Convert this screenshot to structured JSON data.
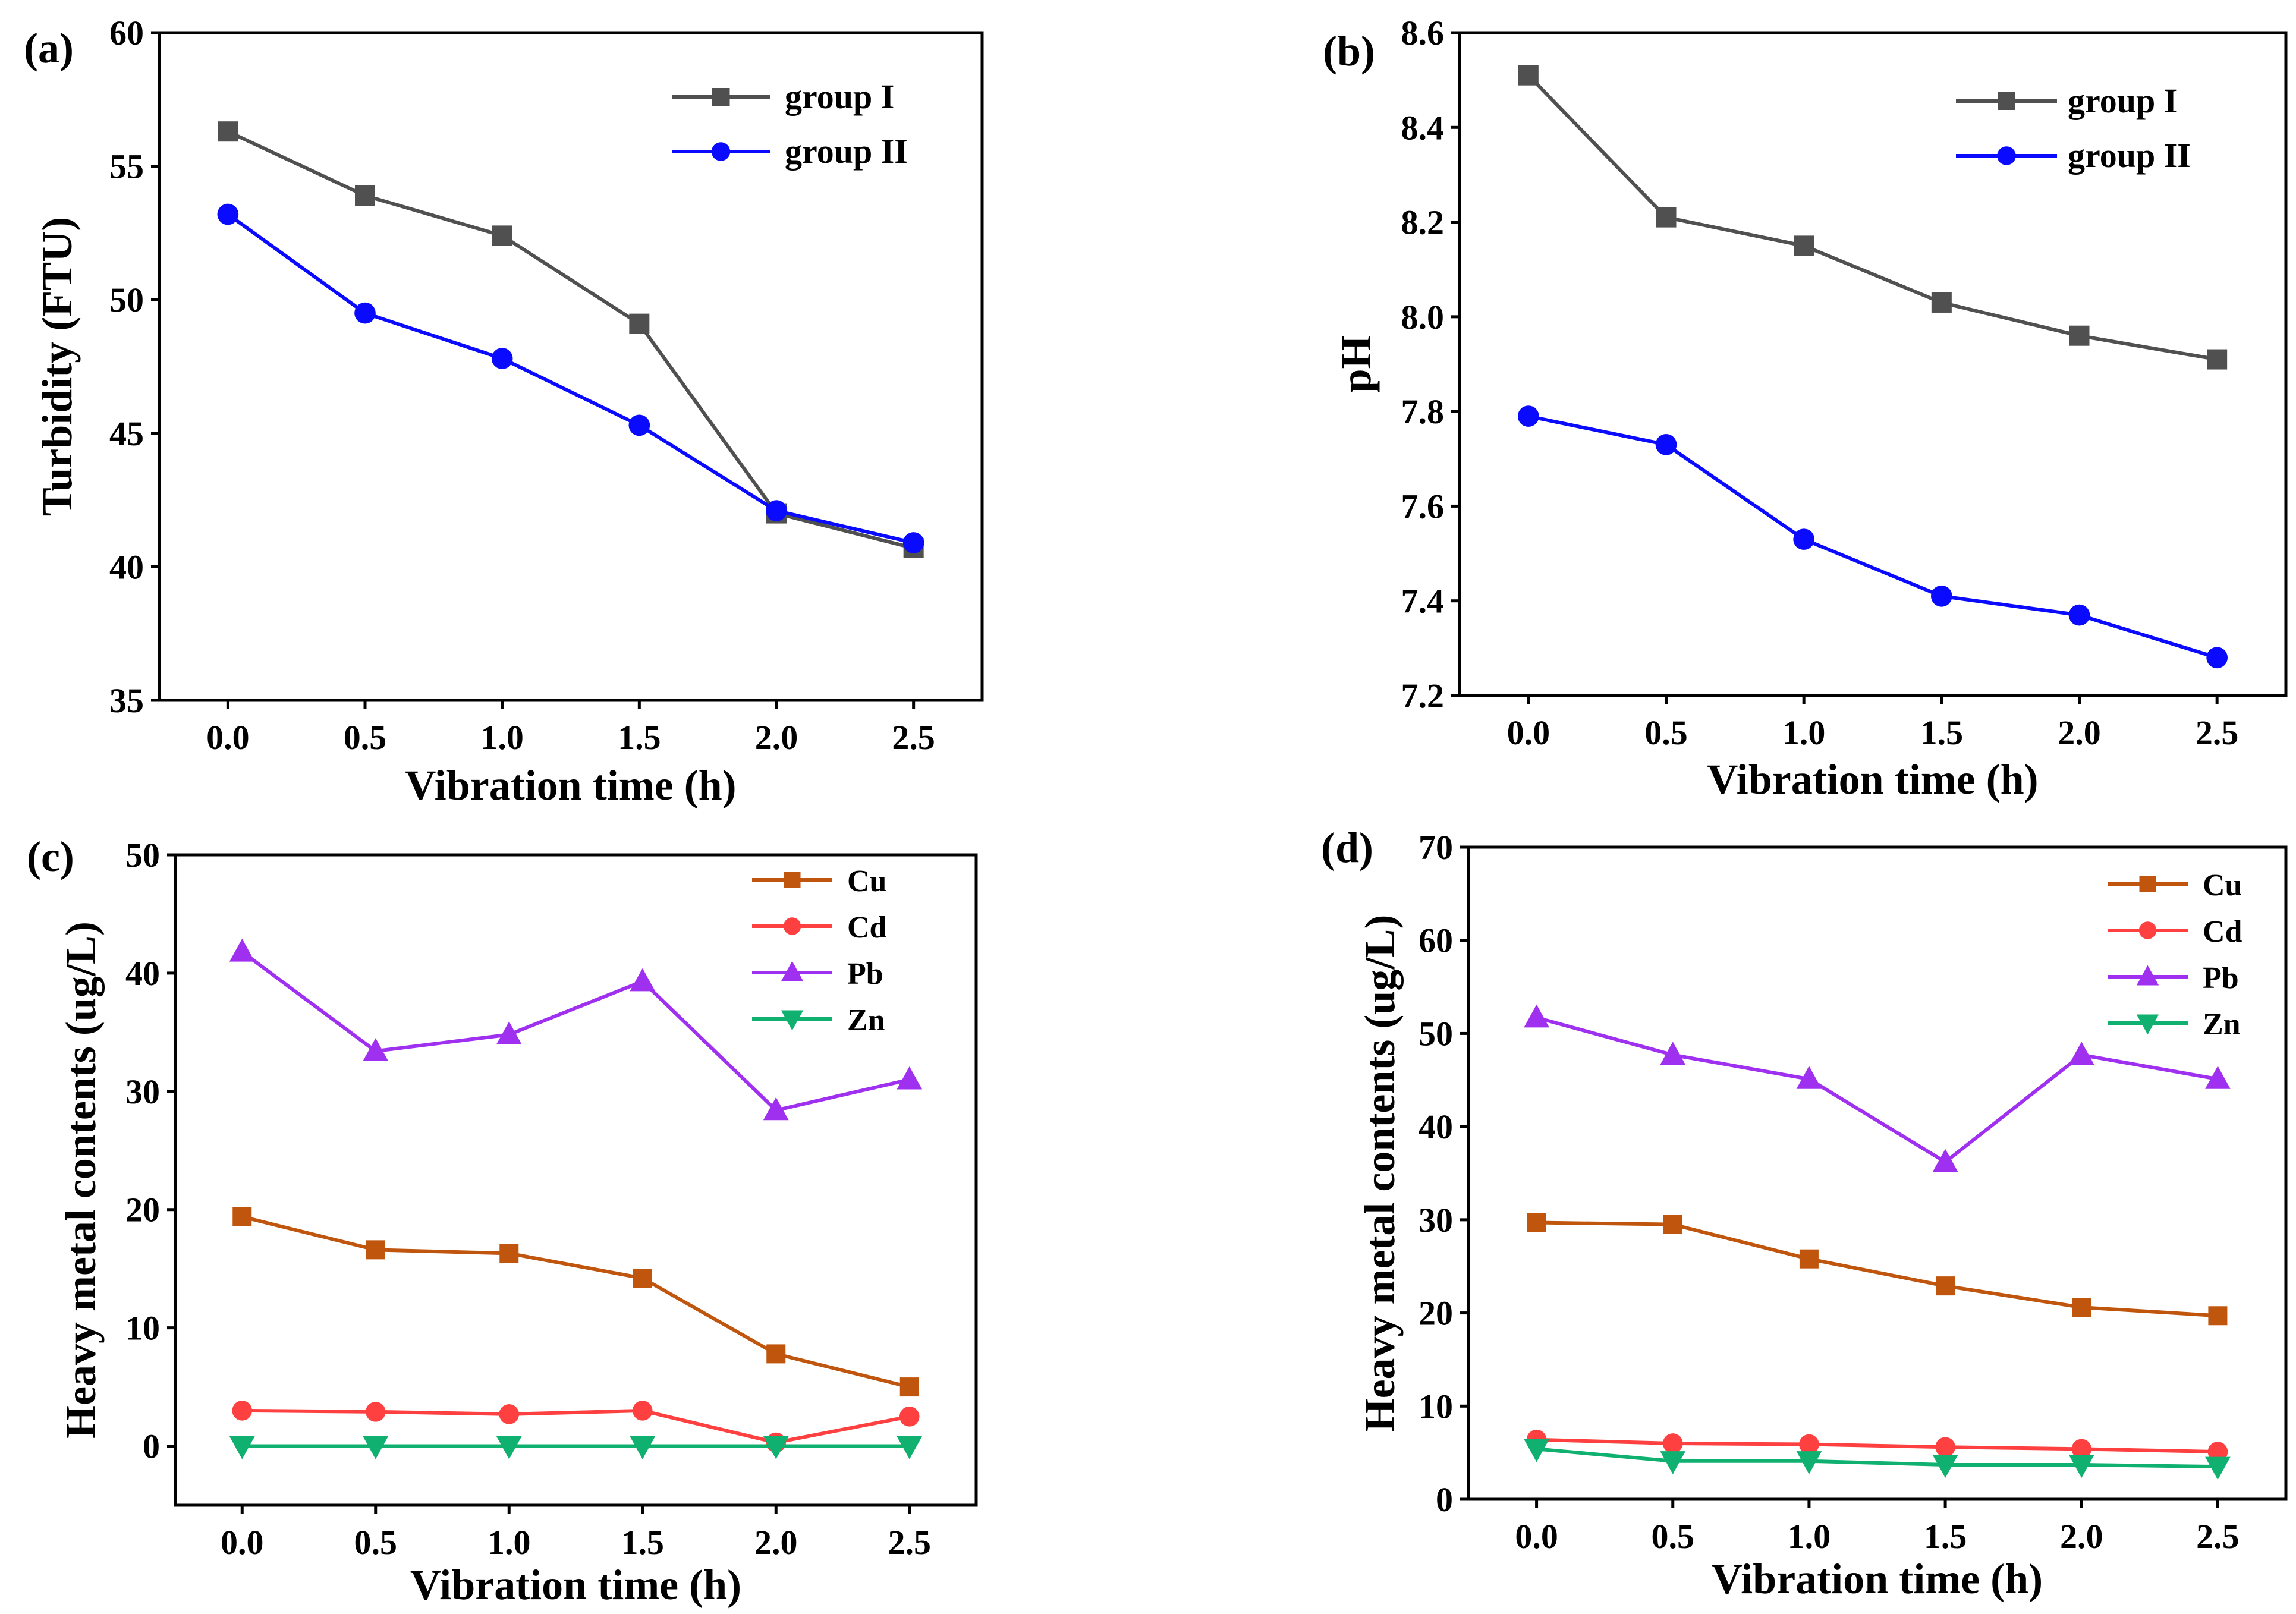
{
  "chart_data": [
    {
      "panel": "(a)",
      "type": "line",
      "xlabel": "Vibration time (h)",
      "ylabel": "Turbidity (FTU)",
      "xlim": [
        -0.25,
        2.75
      ],
      "ylim": [
        35,
        60
      ],
      "xticks": [
        0.0,
        0.5,
        1.0,
        1.5,
        2.0,
        2.5
      ],
      "xtick_labels": [
        "0.0",
        "0.5",
        "1.0",
        "1.5",
        "2.0",
        "2.5"
      ],
      "yticks": [
        35,
        40,
        45,
        50,
        55,
        60
      ],
      "ytick_labels": [
        "35",
        "40",
        "45",
        "50",
        "55",
        "60"
      ],
      "x": [
        0.0,
        0.5,
        1.0,
        1.5,
        2.0,
        2.5
      ],
      "legend_position": "top-right",
      "series": [
        {
          "name": "group I",
          "color": "#505050",
          "marker": "square",
          "values": [
            56.3,
            53.9,
            52.4,
            49.1,
            42.0,
            40.7
          ]
        },
        {
          "name": "group II",
          "color": "#0a0aff",
          "marker": "circle",
          "values": [
            53.2,
            49.5,
            47.8,
            45.3,
            42.1,
            40.9
          ]
        }
      ]
    },
    {
      "panel": "(b)",
      "type": "line",
      "xlabel": "Vibration time (h)",
      "ylabel": "pH",
      "xlim": [
        -0.25,
        2.75
      ],
      "ylim": [
        7.2,
        8.6
      ],
      "xticks": [
        0.0,
        0.5,
        1.0,
        1.5,
        2.0,
        2.5
      ],
      "xtick_labels": [
        "0.0",
        "0.5",
        "1.0",
        "1.5",
        "2.0",
        "2.5"
      ],
      "yticks": [
        7.2,
        7.4,
        7.6,
        7.8,
        8.0,
        8.2,
        8.4,
        8.6
      ],
      "ytick_labels": [
        "7.2",
        "7.4",
        "7.6",
        "7.8",
        "8.0",
        "8.2",
        "8.4",
        "8.6"
      ],
      "x": [
        0.0,
        0.5,
        1.0,
        1.5,
        2.0,
        2.5
      ],
      "legend_position": "top-right",
      "series": [
        {
          "name": "group I",
          "color": "#505050",
          "marker": "square",
          "values": [
            8.51,
            8.21,
            8.15,
            8.03,
            7.96,
            7.91
          ]
        },
        {
          "name": "group II",
          "color": "#0a0aff",
          "marker": "circle",
          "values": [
            7.79,
            7.73,
            7.53,
            7.41,
            7.37,
            7.28
          ]
        }
      ]
    },
    {
      "panel": "(c)",
      "type": "line",
      "xlabel": "Vibration time (h)",
      "ylabel": "Heavy metal contents (ug/L)",
      "xlim": [
        -0.25,
        2.75
      ],
      "ylim": [
        -5,
        50
      ],
      "xticks": [
        0.0,
        0.5,
        1.0,
        1.5,
        2.0,
        2.5
      ],
      "xtick_labels": [
        "0.0",
        "0.5",
        "1.0",
        "1.5",
        "2.0",
        "2.5"
      ],
      "yticks": [
        0,
        10,
        20,
        30,
        40,
        50
      ],
      "ytick_labels": [
        "0",
        "10",
        "20",
        "30",
        "40",
        "50"
      ],
      "x": [
        0.0,
        0.5,
        1.0,
        1.5,
        2.0,
        2.5
      ],
      "legend_position": "top-right",
      "series": [
        {
          "name": "Cu",
          "color": "#c0560e",
          "marker": "square",
          "values": [
            19.4,
            16.6,
            16.3,
            14.2,
            7.8,
            5.0
          ]
        },
        {
          "name": "Cd",
          "color": "#ff4040",
          "marker": "circle",
          "values": [
            3.0,
            2.9,
            2.7,
            3.0,
            0.3,
            2.5
          ]
        },
        {
          "name": "Pb",
          "color": "#a030f0",
          "marker": "triangle-up",
          "values": [
            41.8,
            33.4,
            34.8,
            39.3,
            28.4,
            31.0
          ]
        },
        {
          "name": "Zn",
          "color": "#10b070",
          "marker": "triangle-down",
          "values": [
            0.0,
            0.0,
            0.0,
            0.0,
            0.0,
            0.0
          ]
        }
      ]
    },
    {
      "panel": "(d)",
      "type": "line",
      "xlabel": "Vibration time (h)",
      "ylabel": "Heavy metal contents (ug/L)",
      "xlim": [
        -0.25,
        2.75
      ],
      "ylim": [
        0,
        70
      ],
      "xticks": [
        0.0,
        0.5,
        1.0,
        1.5,
        2.0,
        2.5
      ],
      "xtick_labels": [
        "0.0",
        "0.5",
        "1.0",
        "1.5",
        "2.0",
        "2.5"
      ],
      "yticks": [
        0,
        10,
        20,
        30,
        40,
        50,
        60,
        70
      ],
      "ytick_labels": [
        "0",
        "10",
        "20",
        "30",
        "40",
        "50",
        "60",
        "70"
      ],
      "x": [
        0.0,
        0.5,
        1.0,
        1.5,
        2.0,
        2.5
      ],
      "legend_position": "top-right",
      "series": [
        {
          "name": "Cu",
          "color": "#c0560e",
          "marker": "square",
          "values": [
            29.7,
            29.5,
            25.8,
            22.9,
            20.6,
            19.7
          ]
        },
        {
          "name": "Cd",
          "color": "#ff4040",
          "marker": "circle",
          "values": [
            6.4,
            6.0,
            5.9,
            5.6,
            5.4,
            5.1
          ]
        },
        {
          "name": "Pb",
          "color": "#a030f0",
          "marker": "triangle-up",
          "values": [
            51.7,
            47.7,
            45.1,
            36.2,
            47.7,
            45.1
          ]
        },
        {
          "name": "Zn",
          "color": "#10b070",
          "marker": "triangle-down",
          "values": [
            5.4,
            4.1,
            4.1,
            3.7,
            3.7,
            3.5
          ]
        }
      ]
    }
  ]
}
